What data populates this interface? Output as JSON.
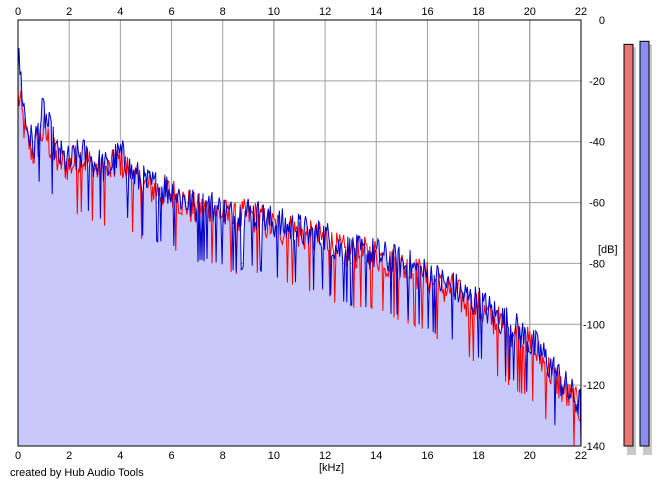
{
  "chart_data": {
    "type": "line",
    "title": "",
    "xlabel": "[kHz]",
    "ylabel": "[dB]",
    "xlim": [
      0,
      22
    ],
    "ylim": [
      -140,
      0
    ],
    "x_ticks": [
      0,
      2,
      4,
      6,
      8,
      10,
      12,
      14,
      16,
      18,
      20,
      22
    ],
    "y_ticks": [
      0,
      -20,
      -40,
      -60,
      -80,
      -100,
      -120,
      -140
    ],
    "grid": true,
    "fill_below": true,
    "fill_color": "#c8c8fa",
    "series": [
      {
        "color": "#ff0000",
        "x": [
          0.05,
          0.3,
          0.6,
          1,
          1.5,
          2,
          2.5,
          3,
          3.5,
          4,
          4.5,
          5,
          5.5,
          6,
          6.5,
          7,
          7.5,
          8,
          8.5,
          9,
          9.5,
          10,
          10.5,
          11,
          11.5,
          12,
          12.5,
          13,
          13.5,
          14,
          14.5,
          15,
          15.5,
          16,
          16.5,
          17,
          17.5,
          18,
          18.5,
          19,
          19.5,
          20,
          20.5,
          21,
          21.5,
          22
        ],
        "y": [
          -26,
          -38,
          -44,
          -36,
          -46,
          -48,
          -45,
          -49,
          -50,
          -46,
          -52,
          -55,
          -56,
          -57,
          -60,
          -63,
          -62,
          -64,
          -66,
          -64,
          -66,
          -68,
          -69,
          -70,
          -72,
          -72,
          -76,
          -77,
          -77,
          -77,
          -80,
          -81,
          -83,
          -85,
          -88,
          -89,
          -93,
          -95,
          -98,
          -101,
          -104,
          -107,
          -112,
          -118,
          -124,
          -128
        ]
      },
      {
        "color": "#0000cc",
        "x": [
          0.05,
          0.3,
          0.6,
          1,
          1.5,
          2,
          2.5,
          3,
          3.5,
          4,
          4.5,
          5,
          5.5,
          6,
          6.5,
          7,
          7.5,
          8,
          8.5,
          9,
          9.5,
          10,
          10.5,
          11,
          11.5,
          12,
          12.5,
          13,
          13.5,
          14,
          14.5,
          15,
          15.5,
          16,
          16.5,
          17,
          17.5,
          18,
          18.5,
          19,
          19.5,
          20,
          20.5,
          21,
          21.5,
          22
        ],
        "y": [
          -14,
          -34,
          -42,
          -30,
          -44,
          -47,
          -44,
          -47,
          -49,
          -44,
          -51,
          -54,
          -55,
          -56,
          -59,
          -62,
          -61,
          -63,
          -65,
          -63,
          -65,
          -67,
          -68,
          -69,
          -71,
          -71,
          -75,
          -76,
          -77,
          -77,
          -79,
          -80,
          -82,
          -84,
          -86,
          -88,
          -91,
          -93,
          -96,
          -99,
          -102,
          -106,
          -110,
          -116,
          -122,
          -127
        ]
      }
    ],
    "level_meters": [
      {
        "color": "#e87878",
        "level_db": -8
      },
      {
        "color": "#8c8cf0",
        "level_db": -7
      }
    ]
  },
  "credit": "created by Hub Audio Tools"
}
